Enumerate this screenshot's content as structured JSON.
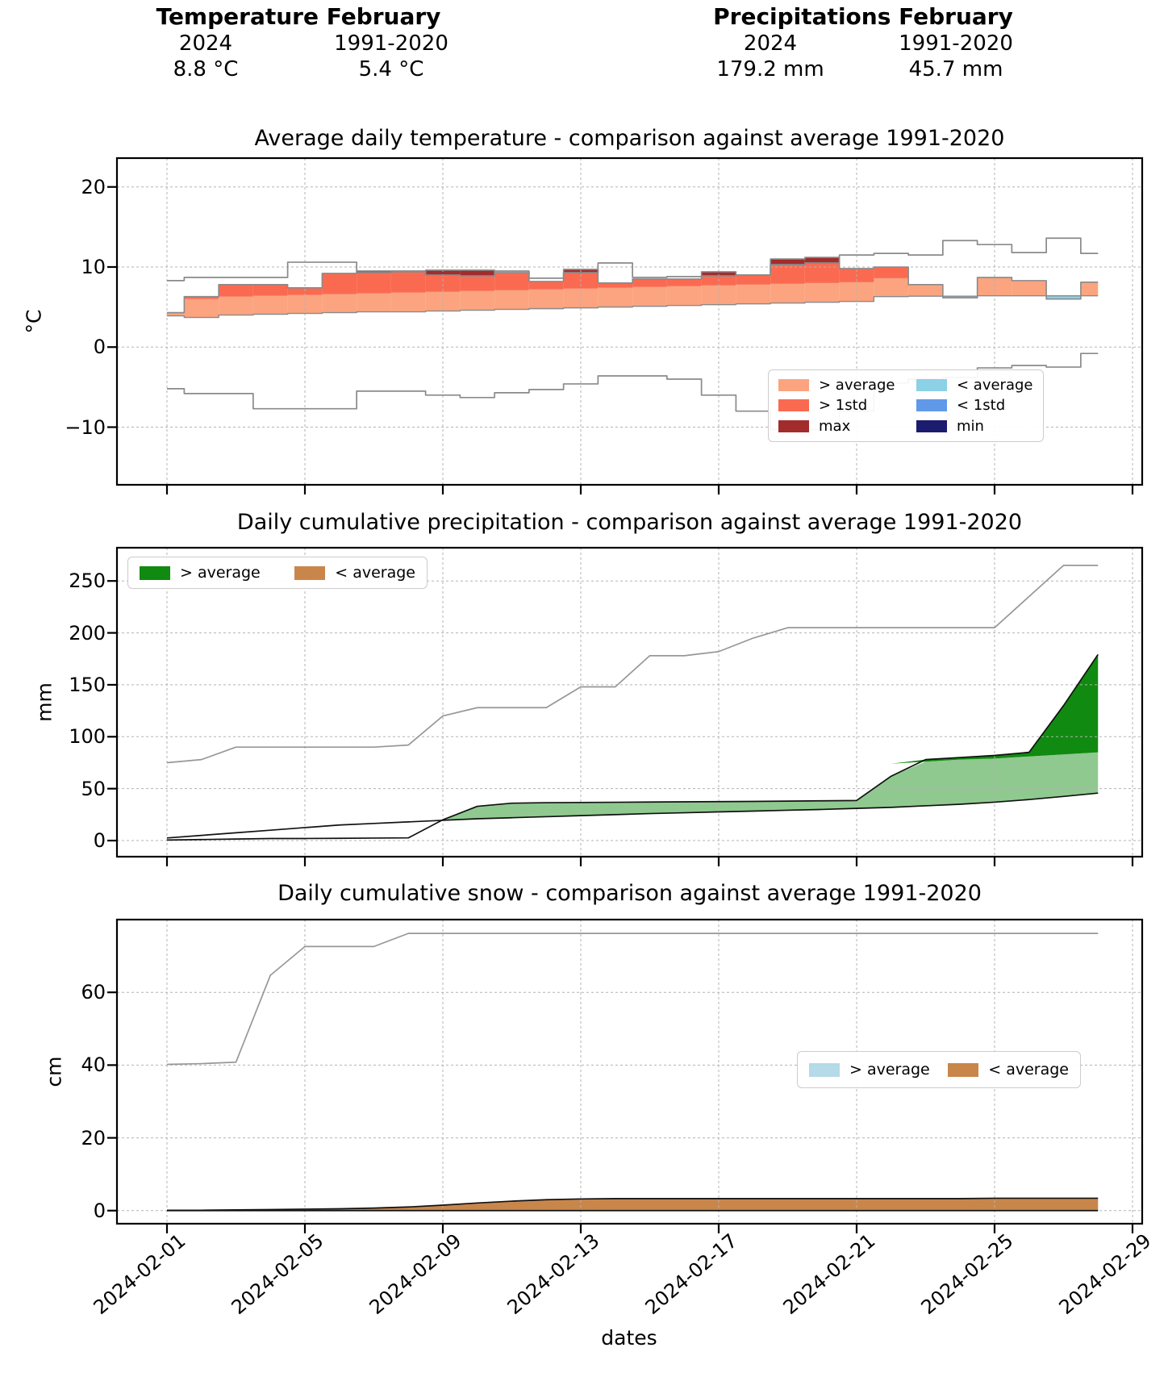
{
  "header": {
    "temperature": {
      "title": "Temperature February",
      "col1_label": "2024",
      "col2_label": "1991-2020",
      "col1_value": "8.8 °C",
      "col2_value": "5.4 °C"
    },
    "precipitation": {
      "title": "Precipitations February",
      "col1_label": "2024",
      "col2_label": "1991-2020",
      "col1_value": "179.2 mm",
      "col2_value": "45.7 mm"
    }
  },
  "xaxis": {
    "label": "dates",
    "tick_labels": [
      "2024-02-01",
      "2024-02-05",
      "2024-02-09",
      "2024-02-13",
      "2024-02-17",
      "2024-02-21",
      "2024-02-25",
      "2024-02-29"
    ],
    "tick_days": [
      1,
      5,
      9,
      13,
      17,
      21,
      25,
      29
    ]
  },
  "dates": [
    "2024-02-01",
    "2024-02-02",
    "2024-02-03",
    "2024-02-04",
    "2024-02-05",
    "2024-02-06",
    "2024-02-07",
    "2024-02-08",
    "2024-02-09",
    "2024-02-10",
    "2024-02-11",
    "2024-02-12",
    "2024-02-13",
    "2024-02-14",
    "2024-02-15",
    "2024-02-16",
    "2024-02-17",
    "2024-02-18",
    "2024-02-19",
    "2024-02-20",
    "2024-02-21",
    "2024-02-22",
    "2024-02-23",
    "2024-02-24",
    "2024-02-25",
    "2024-02-26",
    "2024-02-27",
    "2024-02-28"
  ],
  "chart_data": [
    {
      "id": "temperature",
      "type": "area",
      "title": "Average daily temperature - comparison against average 1991-2020",
      "ylabel": "°C",
      "yticks": [
        -10,
        0,
        10,
        20
      ],
      "ylim": [
        -17.2,
        23.6
      ],
      "grid": true,
      "legend": [
        {
          "label": "> average",
          "color": "#FBA47F"
        },
        {
          "label": "> 1std",
          "color": "#FA6A51"
        },
        {
          "label": "max",
          "color": "#A22C2C"
        },
        {
          "label": "< average",
          "color": "#8CD1E6"
        },
        {
          "label": "< 1std",
          "color": "#6099E8"
        },
        {
          "label": "min",
          "color": "#1B1B70"
        }
      ],
      "series": {
        "average": [
          3.9,
          3.7,
          4.0,
          4.1,
          4.2,
          4.3,
          4.4,
          4.4,
          4.5,
          4.6,
          4.7,
          4.8,
          4.9,
          5.0,
          5.1,
          5.2,
          5.3,
          5.4,
          5.5,
          5.6,
          5.7,
          6.3,
          6.35,
          6.35,
          6.4,
          6.4,
          6.4,
          6.4
        ],
        "avg_plus_1std": [
          6.2,
          6.0,
          6.3,
          6.4,
          6.5,
          6.6,
          6.7,
          6.8,
          6.9,
          7.0,
          7.1,
          7.2,
          7.3,
          7.4,
          7.5,
          7.6,
          7.7,
          7.8,
          7.9,
          8.0,
          8.1,
          8.6,
          8.6,
          8.7,
          8.7,
          8.8,
          8.8,
          8.8
        ],
        "temp_2024": [
          4.3,
          6.3,
          7.8,
          7.8,
          7.4,
          9.2,
          9.5,
          9.5,
          9.6,
          9.6,
          9.3,
          8.2,
          9.7,
          8.0,
          8.5,
          8.5,
          9.4,
          9.0,
          11.0,
          11.2,
          9.8,
          10.0,
          7.8,
          6.15,
          8.7,
          8.3,
          6.0,
          8.1
        ],
        "record_max": [
          8.3,
          8.7,
          8.7,
          8.7,
          10.6,
          10.6,
          9.3,
          9.4,
          9.0,
          8.9,
          9.5,
          8.6,
          9.3,
          10.5,
          8.7,
          8.8,
          8.9,
          9.0,
          10.3,
          10.5,
          11.5,
          11.7,
          11.5,
          13.3,
          12.8,
          11.8,
          13.6,
          11.7
        ],
        "record_min": [
          -5.2,
          -5.8,
          -5.8,
          -7.7,
          -7.7,
          -7.7,
          -5.5,
          -5.5,
          -6.0,
          -6.3,
          -5.7,
          -5.3,
          -4.6,
          -3.6,
          -3.6,
          -4.0,
          -6.0,
          -8.0,
          -10.3,
          -10.3,
          -8.0,
          -4.5,
          -4.0,
          -3.8,
          -2.6,
          -2.3,
          -2.5,
          -0.8
        ]
      }
    },
    {
      "id": "precipitation",
      "type": "area",
      "title": "Daily cumulative precipitation - comparison against average 1991-2020",
      "ylabel": "mm",
      "yticks": [
        0,
        50,
        100,
        150,
        200,
        250
      ],
      "ylim": [
        -15.5,
        282
      ],
      "grid": true,
      "legend": [
        {
          "label": "> average",
          "color": "#108A10"
        },
        {
          "label": "< average",
          "color": "#C9864B"
        }
      ],
      "fill_colors": {
        "above_light": "#8FC98F",
        "above_dark": "#108A10",
        "below": "#EBD0AB"
      },
      "series": {
        "record_max": [
          75,
          78,
          90,
          90,
          90,
          90,
          90,
          92,
          120,
          128,
          128,
          128,
          148,
          148,
          178,
          178,
          182,
          195,
          205,
          205,
          205,
          205,
          205,
          205,
          205,
          235,
          265,
          265
        ],
        "average": [
          2.5,
          5,
          7.5,
          10,
          12.5,
          15,
          16.5,
          18,
          19.5,
          21,
          22,
          23,
          24,
          25,
          26,
          26.8,
          27.6,
          28.4,
          29.2,
          30,
          31,
          32,
          33.5,
          35,
          37,
          39.5,
          42.5,
          45.7
        ],
        "avg_plus_1std": [
          42,
          43,
          45,
          46,
          48,
          49,
          51,
          52,
          54,
          55,
          57,
          58,
          60,
          62,
          63,
          65,
          66,
          68,
          70,
          71,
          73,
          74,
          76,
          78,
          79,
          81,
          83,
          85
        ],
        "cum_2024": [
          0.5,
          1,
          1.5,
          2,
          2,
          2.2,
          2.4,
          2.6,
          20,
          33,
          36,
          36.5,
          36.7,
          36.9,
          37.1,
          37.3,
          37.5,
          37.7,
          38,
          38.3,
          38.6,
          62,
          78,
          80,
          82,
          85,
          130,
          179.2
        ]
      }
    },
    {
      "id": "snow",
      "type": "area",
      "title": "Daily cumulative snow - comparison against average 1991-2020",
      "ylabel": "cm",
      "yticks": [
        0,
        20,
        40,
        60
      ],
      "ylim": [
        -3.6,
        80
      ],
      "grid": true,
      "legend": [
        {
          "label": "> average",
          "color": "#B5DAE8"
        },
        {
          "label": "< average",
          "color": "#C9864B"
        }
      ],
      "fill_colors": {
        "below": "#C9864B"
      },
      "series": {
        "record_max": [
          40.2,
          40.4,
          40.8,
          64.7,
          72.6,
          72.6,
          72.6,
          76.2,
          76.2,
          76.2,
          76.2,
          76.2,
          76.2,
          76.2,
          76.2,
          76.2,
          76.2,
          76.2,
          76.2,
          76.2,
          76.2,
          76.2,
          76.2,
          76.2,
          76.2,
          76.2,
          76.2,
          76.2
        ],
        "average": [
          0.1,
          0.1,
          0.2,
          0.3,
          0.4,
          0.5,
          0.7,
          1.0,
          1.5,
          2.1,
          2.6,
          3.0,
          3.2,
          3.3,
          3.3,
          3.3,
          3.3,
          3.3,
          3.3,
          3.3,
          3.3,
          3.3,
          3.3,
          3.3,
          3.4,
          3.4,
          3.4,
          3.4
        ],
        "cum_2024": [
          0,
          0,
          0,
          0,
          0,
          0,
          0,
          0,
          0,
          0,
          0,
          0,
          0,
          0,
          0,
          0,
          0,
          0,
          0,
          0,
          0,
          0,
          0,
          0,
          0,
          0,
          0,
          0
        ]
      }
    }
  ]
}
